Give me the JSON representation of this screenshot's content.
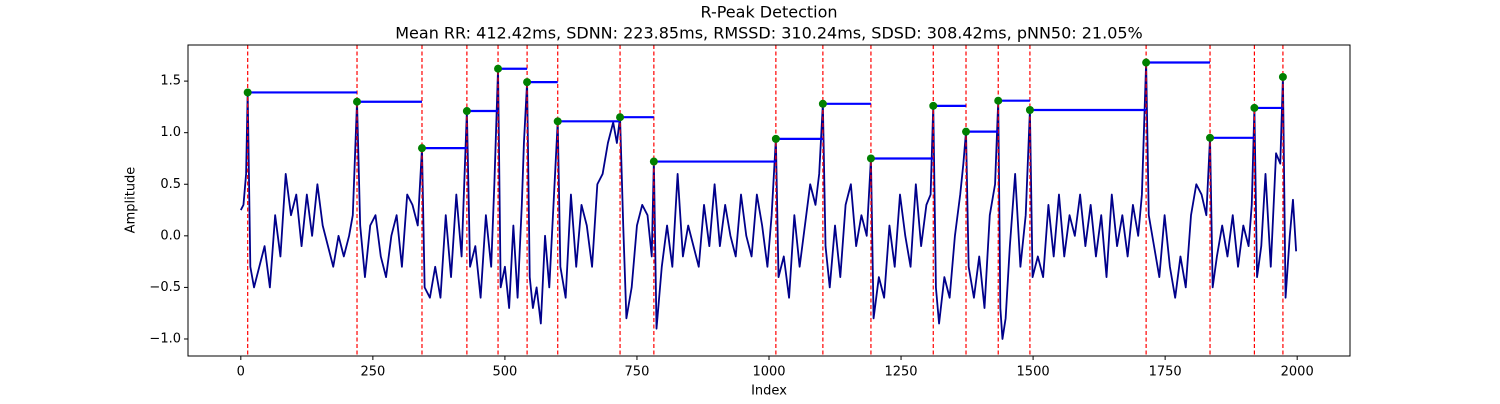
{
  "chart_data": {
    "type": "line",
    "title": "R-Peak Detection",
    "subtitle": "Mean RR: 412.42ms, SDNN: 223.85ms, RMSSD: 310.24ms, SDSD: 308.42ms, pNN50: 21.05%",
    "x_label": "Index",
    "y_label": "Amplitude",
    "xlim": [
      -100,
      2100
    ],
    "ylim": [
      -1.165,
      1.85
    ],
    "xticks": [
      0,
      250,
      500,
      750,
      1000,
      1250,
      1500,
      1750,
      2000
    ],
    "yticks": [
      {
        "value": -1.0,
        "label": "−1.0"
      },
      {
        "value": -0.5,
        "label": "−0.5"
      },
      {
        "value": 0.0,
        "label": "0.0"
      },
      {
        "value": 0.5,
        "label": "0.5"
      },
      {
        "value": 1.0,
        "label": "1.0"
      },
      {
        "value": 1.5,
        "label": "1.5"
      }
    ],
    "peak_line_color": "#ff0000",
    "interval_color": "#0000ff",
    "signal": {
      "color": "#00008b",
      "x": [
        0,
        5,
        10,
        13,
        18,
        25,
        35,
        45,
        55,
        65,
        75,
        85,
        95,
        105,
        115,
        125,
        135,
        145,
        155,
        165,
        175,
        185,
        195,
        205,
        212,
        220,
        226,
        235,
        245,
        255,
        265,
        275,
        285,
        295,
        305,
        315,
        325,
        335,
        343,
        348,
        358,
        368,
        378,
        388,
        398,
        408,
        418,
        428,
        434,
        444,
        454,
        464,
        474,
        480,
        487,
        492,
        500,
        508,
        516,
        524,
        532,
        536,
        542,
        547,
        553,
        560,
        568,
        576,
        584,
        592,
        600,
        605,
        615,
        625,
        635,
        645,
        655,
        665,
        675,
        685,
        695,
        705,
        712,
        718,
        724,
        730,
        740,
        750,
        760,
        770,
        778,
        782,
        787,
        797,
        807,
        817,
        827,
        837,
        847,
        857,
        867,
        877,
        887,
        897,
        907,
        917,
        927,
        937,
        947,
        957,
        967,
        977,
        987,
        997,
        1005,
        1013,
        1018,
        1028,
        1038,
        1048,
        1058,
        1068,
        1078,
        1088,
        1095,
        1102,
        1107,
        1115,
        1125,
        1135,
        1145,
        1155,
        1165,
        1175,
        1185,
        1193,
        1198,
        1208,
        1218,
        1228,
        1238,
        1248,
        1258,
        1268,
        1278,
        1288,
        1298,
        1306,
        1311,
        1316,
        1322,
        1332,
        1342,
        1352,
        1362,
        1368,
        1373,
        1378,
        1388,
        1398,
        1408,
        1418,
        1428,
        1434,
        1438,
        1442,
        1448,
        1456,
        1466,
        1476,
        1486,
        1494,
        1499,
        1509,
        1519,
        1529,
        1539,
        1549,
        1559,
        1569,
        1579,
        1589,
        1599,
        1609,
        1619,
        1629,
        1639,
        1649,
        1659,
        1669,
        1679,
        1689,
        1699,
        1706,
        1714,
        1719,
        1729,
        1739,
        1749,
        1759,
        1769,
        1779,
        1789,
        1799,
        1809,
        1819,
        1828,
        1835,
        1840,
        1848,
        1858,
        1868,
        1878,
        1888,
        1898,
        1908,
        1914,
        1919,
        1924,
        1932,
        1940,
        1950,
        1960,
        1968,
        1973,
        1978,
        1986,
        1992,
        1998
      ],
      "values": [
        0.25,
        0.3,
        0.6,
        1.39,
        -0.3,
        -0.5,
        -0.3,
        -0.1,
        -0.5,
        0.2,
        -0.2,
        0.6,
        0.2,
        0.4,
        -0.1,
        0.4,
        0.0,
        0.5,
        0.1,
        -0.1,
        -0.3,
        0.0,
        -0.2,
        0.0,
        0.2,
        1.3,
        0.1,
        -0.4,
        0.1,
        0.2,
        -0.2,
        -0.4,
        0.0,
        0.2,
        -0.3,
        0.4,
        0.3,
        0.1,
        0.85,
        -0.5,
        -0.6,
        -0.3,
        -0.6,
        0.2,
        -0.4,
        0.4,
        -0.2,
        1.21,
        -0.3,
        -0.1,
        -0.6,
        0.2,
        -0.3,
        0.5,
        1.62,
        -0.5,
        -0.3,
        -0.7,
        0.1,
        -0.6,
        0.3,
        0.9,
        1.49,
        -0.4,
        -0.7,
        -0.5,
        -0.85,
        0.0,
        -0.5,
        0.3,
        1.11,
        -0.3,
        -0.6,
        0.4,
        -0.3,
        0.3,
        0.1,
        -0.3,
        0.5,
        0.6,
        0.9,
        1.1,
        0.9,
        1.15,
        0.1,
        -0.8,
        -0.5,
        0.1,
        0.3,
        0.2,
        -0.2,
        0.72,
        -0.9,
        -0.3,
        0.1,
        -0.3,
        0.6,
        -0.2,
        0.1,
        -0.1,
        -0.3,
        0.3,
        -0.1,
        0.5,
        -0.1,
        0.3,
        0.0,
        -0.2,
        0.4,
        0.0,
        -0.2,
        0.4,
        0.1,
        -0.3,
        0.2,
        0.94,
        -0.4,
        -0.2,
        -0.6,
        0.2,
        -0.3,
        0.1,
        0.5,
        0.3,
        0.6,
        1.28,
        -0.1,
        -0.5,
        0.1,
        -0.4,
        0.3,
        0.5,
        -0.1,
        0.2,
        0.0,
        0.75,
        -0.8,
        -0.4,
        -0.6,
        0.1,
        -0.3,
        0.4,
        0.0,
        -0.3,
        0.5,
        -0.1,
        0.3,
        0.4,
        1.26,
        -0.5,
        -0.85,
        -0.4,
        -0.6,
        0.0,
        0.4,
        0.7,
        1.01,
        -0.3,
        -0.6,
        -0.2,
        -0.7,
        0.2,
        0.5,
        1.31,
        -0.7,
        -1.0,
        -0.8,
        -0.1,
        0.6,
        -0.3,
        0.2,
        1.22,
        -0.4,
        -0.2,
        -0.4,
        0.3,
        -0.2,
        0.4,
        -0.2,
        0.2,
        0.0,
        0.4,
        -0.1,
        0.3,
        -0.2,
        0.2,
        -0.4,
        0.4,
        -0.1,
        0.2,
        -0.2,
        0.3,
        0.0,
        0.4,
        1.68,
        0.2,
        -0.1,
        -0.4,
        0.2,
        -0.3,
        -0.6,
        -0.2,
        -0.5,
        0.2,
        0.5,
        0.4,
        0.2,
        0.95,
        -0.5,
        -0.2,
        0.1,
        -0.2,
        0.2,
        -0.3,
        0.1,
        -0.1,
        0.3,
        1.24,
        -0.4,
        -0.1,
        0.6,
        -0.3,
        0.8,
        0.7,
        1.54,
        -0.6,
        0.0,
        0.35,
        -0.15
      ]
    },
    "peaks": {
      "color": "#008000",
      "x": [
        13,
        220,
        343,
        428,
        487,
        542,
        600,
        718,
        782,
        1013,
        1102,
        1193,
        1311,
        1373,
        1434,
        1494,
        1714,
        1835,
        1919,
        1973
      ],
      "values": [
        1.39,
        1.3,
        0.85,
        1.21,
        1.62,
        1.49,
        1.11,
        1.15,
        0.72,
        0.94,
        1.28,
        0.75,
        1.26,
        1.01,
        1.31,
        1.22,
        1.68,
        0.95,
        1.24,
        1.54
      ]
    }
  }
}
